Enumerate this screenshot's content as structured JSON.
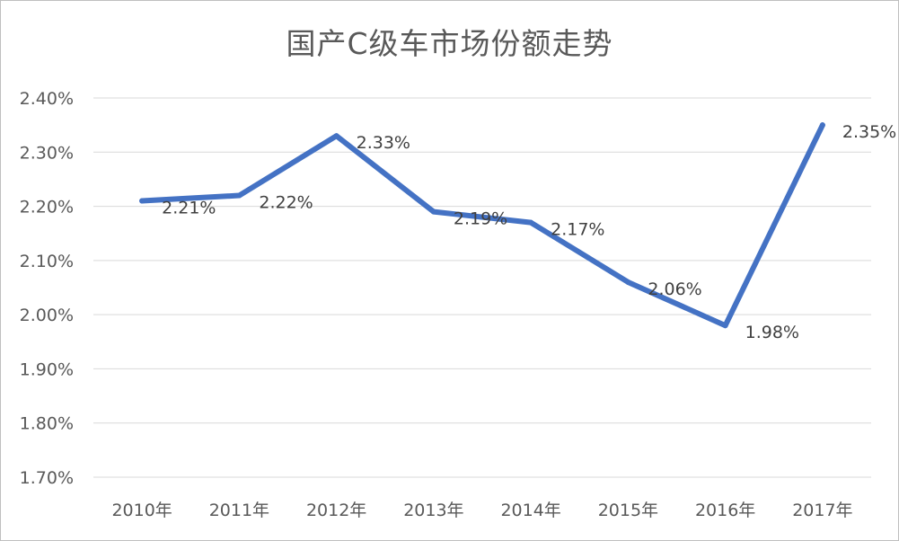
{
  "chart_data": {
    "type": "line",
    "title": "国产C级车市场份额走势",
    "categories": [
      "2010年",
      "2011年",
      "2012年",
      "2013年",
      "2014年",
      "2015年",
      "2016年",
      "2017年"
    ],
    "series": [
      {
        "values": [
          2.21,
          2.22,
          2.33,
          2.19,
          2.17,
          2.06,
          1.98,
          2.35
        ],
        "data_labels": [
          "2.21%",
          "2.22%",
          "2.33%",
          "2.19%",
          "2.17%",
          "2.06%",
          "1.98%",
          "2.35%"
        ],
        "color": "#4472c4"
      }
    ],
    "y_ticks": [
      "1.70%",
      "1.80%",
      "1.90%",
      "2.00%",
      "2.10%",
      "2.20%",
      "2.30%",
      "2.40%"
    ],
    "ylim": [
      1.7,
      2.4
    ],
    "grid": true,
    "legend": "none",
    "gridline_color": "#d9d9d9"
  }
}
